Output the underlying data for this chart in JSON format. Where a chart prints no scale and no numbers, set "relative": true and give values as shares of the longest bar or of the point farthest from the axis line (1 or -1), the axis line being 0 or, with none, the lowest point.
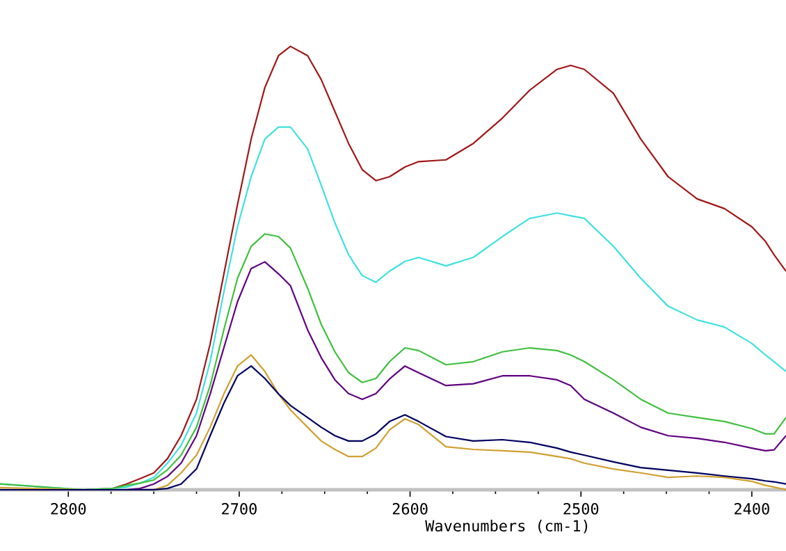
{
  "chart_data": {
    "type": "line",
    "xlabel": "Wavenumbers (cm-1)",
    "relative": true,
    "xlim": [
      2840,
      2380
    ],
    "xticks": [
      2800,
      2700,
      2600,
      2500,
      2400
    ],
    "x": [
      2840,
      2791,
      2774,
      2766,
      2758,
      2750,
      2742,
      2734,
      2725,
      2717,
      2709,
      2701,
      2693,
      2685,
      2677,
      2670,
      2660,
      2652,
      2644,
      2636,
      2628,
      2620,
      2612,
      2603,
      2595,
      2579,
      2563,
      2546,
      2530,
      2514,
      2506,
      2498,
      2481,
      2465,
      2449,
      2432,
      2416,
      2400,
      2392,
      2387,
      2380
    ],
    "series": [
      {
        "color": "#a01818",
        "values": [
          null,
          0,
          0.003,
          0.013,
          0.025,
          0.038,
          0.07,
          0.122,
          0.204,
          0.329,
          0.486,
          0.643,
          0.791,
          0.907,
          0.979,
          1.0,
          0.979,
          0.925,
          0.853,
          0.781,
          0.722,
          0.697,
          0.706,
          0.728,
          0.74,
          0.744,
          0.781,
          0.838,
          0.901,
          0.948,
          0.957,
          0.948,
          0.894,
          0.791,
          0.706,
          0.656,
          0.634,
          0.593,
          0.56,
          0.53,
          0.493
        ]
      },
      {
        "color": "#40e0e0",
        "values": [
          0.013,
          0,
          0.003,
          0.006,
          0.015,
          0.028,
          0.06,
          0.1,
          0.173,
          0.289,
          0.446,
          0.593,
          0.706,
          0.791,
          0.818,
          0.818,
          0.769,
          0.687,
          0.602,
          0.53,
          0.483,
          0.468,
          0.493,
          0.515,
          0.524,
          0.505,
          0.524,
          0.571,
          0.612,
          0.624,
          0.618,
          0.612,
          0.549,
          0.477,
          0.414,
          0.383,
          0.367,
          0.33,
          0.304,
          0.289,
          0.267
        ]
      },
      {
        "color": "#40c040",
        "values": [
          0.013,
          0,
          0.003,
          0.01,
          0.015,
          0.022,
          0.045,
          0.078,
          0.141,
          0.235,
          0.361,
          0.477,
          0.549,
          0.577,
          0.571,
          0.545,
          0.455,
          0.373,
          0.311,
          0.264,
          0.242,
          0.251,
          0.289,
          0.32,
          0.314,
          0.282,
          0.289,
          0.311,
          0.32,
          0.314,
          0.304,
          0.289,
          0.248,
          0.204,
          0.173,
          0.163,
          0.154,
          0.138,
          0.126,
          0.126,
          0.163
        ]
      },
      {
        "color": "#600080",
        "values": [
          null,
          null,
          0,
          0,
          0.003,
          0.013,
          0.03,
          0.06,
          0.122,
          0.216,
          0.32,
          0.424,
          0.499,
          0.514,
          0.487,
          0.46,
          0.361,
          0.298,
          0.248,
          0.217,
          0.204,
          0.217,
          0.25,
          0.279,
          0.264,
          0.235,
          0.239,
          0.257,
          0.257,
          0.248,
          0.235,
          0.204,
          0.173,
          0.141,
          0.122,
          0.116,
          0.107,
          0.094,
          0.088,
          0.09,
          0.122
        ]
      },
      {
        "color": "#d0a030",
        "values": [
          0.005,
          0,
          0,
          0,
          0,
          0,
          0.01,
          0.038,
          0.078,
          0.141,
          0.216,
          0.279,
          0.304,
          0.267,
          0.216,
          0.18,
          0.141,
          0.11,
          0.091,
          0.075,
          0.075,
          0.094,
          0.135,
          0.16,
          0.147,
          0.097,
          0.091,
          0.088,
          0.085,
          0.075,
          0.07,
          0.06,
          0.047,
          0.038,
          0.028,
          0.031,
          0.028,
          0.019,
          0.01,
          0.006,
          0
        ]
      },
      {
        "color": "#000060",
        "values": [
          0,
          0,
          0,
          0,
          0,
          0,
          0.003,
          0.013,
          0.047,
          0.122,
          0.195,
          0.257,
          0.279,
          0.251,
          0.216,
          0.19,
          0.163,
          0.141,
          0.122,
          0.11,
          0.11,
          0.126,
          0.154,
          0.169,
          0.154,
          0.12,
          0.11,
          0.113,
          0.107,
          0.094,
          0.085,
          0.078,
          0.063,
          0.05,
          0.044,
          0.038,
          0.031,
          0.025,
          0.02,
          0.018,
          0.013
        ]
      }
    ]
  }
}
